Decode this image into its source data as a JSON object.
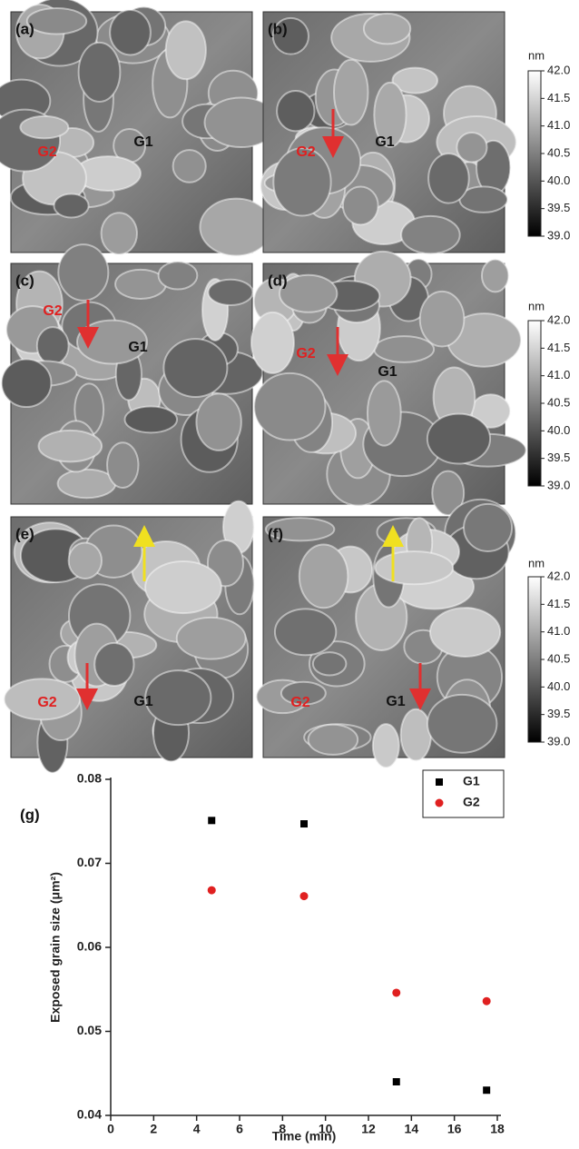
{
  "panels": [
    {
      "label": "(a)",
      "g1": "G1",
      "g2": "G2"
    },
    {
      "label": "(b)",
      "g1": "G1",
      "g2": "G2"
    },
    {
      "label": "(c)",
      "g1": "G1",
      "g2": "G2"
    },
    {
      "label": "(d)",
      "g1": "G1",
      "g2": "G2"
    },
    {
      "label": "(e)",
      "g1": "G1",
      "g2": "G2"
    },
    {
      "label": "(f)",
      "g1": "G1",
      "g2": "G2"
    }
  ],
  "colorbars": [
    {
      "unit": "nm",
      "ticks": [
        {
          "value": 42,
          "label": "42.0"
        },
        {
          "value": 41.5,
          "label": "41.5"
        },
        {
          "value": 41,
          "label": "41.0"
        },
        {
          "value": 40.5,
          "label": "40.5"
        },
        {
          "value": 40,
          "label": "40.0"
        },
        {
          "value": 39.5,
          "label": "39.5"
        },
        {
          "value": 39,
          "label": "39.0"
        }
      ],
      "lim": [
        39,
        42
      ]
    },
    {
      "unit": "nm",
      "ticks": [
        {
          "value": 42,
          "label": "42.0"
        },
        {
          "value": 41.5,
          "label": "41.5"
        },
        {
          "value": 41,
          "label": "41.0"
        },
        {
          "value": 40.5,
          "label": "40.5"
        },
        {
          "value": 40,
          "label": "40.0"
        },
        {
          "value": 39.5,
          "label": "39.5"
        },
        {
          "value": 39,
          "label": "39.0"
        }
      ],
      "lim": [
        39,
        42
      ]
    },
    {
      "unit": "nm",
      "ticks": [
        {
          "value": 42,
          "label": "42.0"
        },
        {
          "value": 41.5,
          "label": "41.5"
        },
        {
          "value": 41,
          "label": "41.0"
        },
        {
          "value": 40.5,
          "label": "40.5"
        },
        {
          "value": 40,
          "label": "40.0"
        },
        {
          "value": 39.5,
          "label": "39.5"
        },
        {
          "value": 39,
          "label": "39.0"
        }
      ],
      "lim": [
        39,
        42
      ]
    }
  ],
  "chart_data": {
    "type": "scatter",
    "panel_label": "(g)",
    "x_label": "Time (min)",
    "y_label": "Exposed grain size (μm²)",
    "xlim": [
      0,
      18
    ],
    "ylim": [
      0.04,
      0.08
    ],
    "xticks": [
      0,
      2,
      4,
      6,
      8,
      10,
      12,
      14,
      16,
      18
    ],
    "yticks": [
      0.04,
      0.05,
      0.06,
      0.07,
      0.08
    ],
    "legend": "top-right",
    "series": [
      {
        "name": "G1",
        "color": "#000000",
        "marker": "square",
        "x": [
          4.7,
          9.0,
          13.3,
          17.5
        ],
        "values": [
          0.0751,
          0.0747,
          0.044,
          0.043
        ]
      },
      {
        "name": "G2",
        "color": "#e02020",
        "marker": "circle",
        "x": [
          4.7,
          9.0,
          13.3,
          17.5
        ],
        "values": [
          0.0668,
          0.0661,
          0.0546,
          0.0536
        ]
      }
    ]
  }
}
